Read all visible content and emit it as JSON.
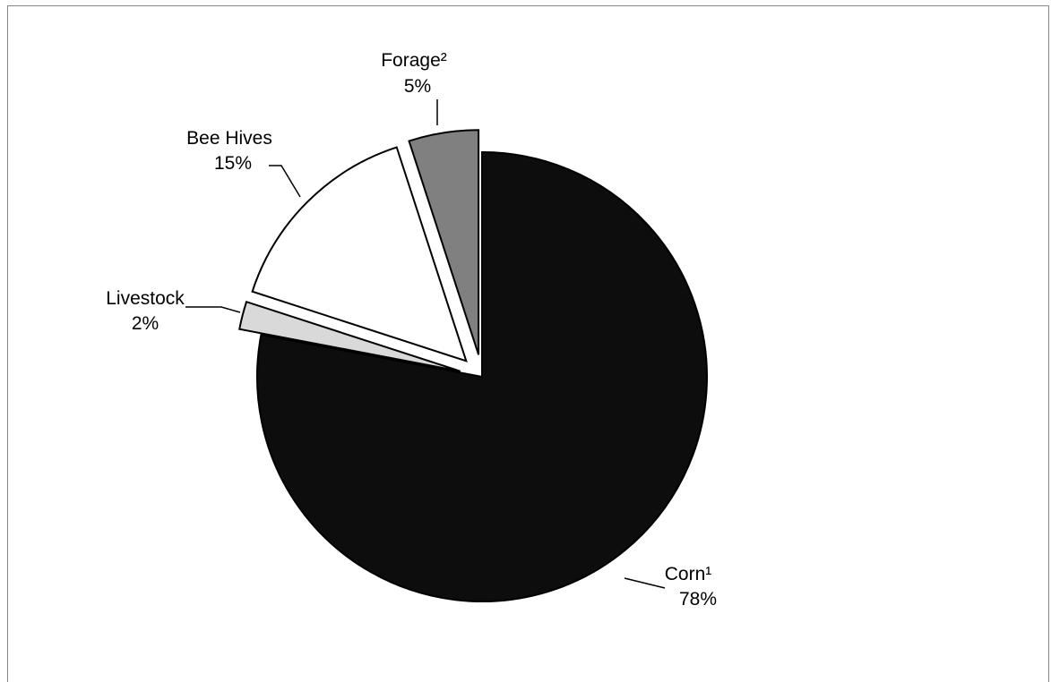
{
  "chart_data": {
    "type": "pie",
    "title": "",
    "slices": [
      {
        "label": "Corn¹",
        "value": 78,
        "value_label": "78%",
        "color": "#0d0d0d",
        "exploded": false
      },
      {
        "label": "Livestock",
        "value": 2,
        "value_label": "2%",
        "color": "#d9d9d9",
        "exploded": true
      },
      {
        "label": "Bee Hives",
        "value": 15,
        "value_label": "15%",
        "color": "#ffffff",
        "exploded": true
      },
      {
        "label": "Forage²",
        "value": 5,
        "value_label": "5%",
        "color": "#808080",
        "exploded": true
      }
    ],
    "start_angle": "12 o'clock",
    "direction": "clockwise",
    "legend": "none",
    "data_labels": "outside with leader lines"
  }
}
